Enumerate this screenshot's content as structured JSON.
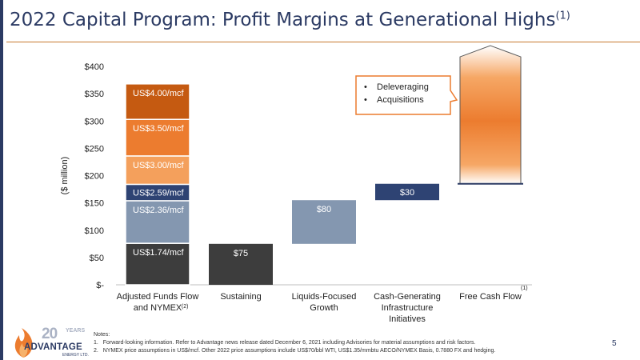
{
  "title": {
    "main": "2022 Capital Program:  Profit Margins at Generational Highs",
    "footnote_ref": "(1)"
  },
  "chart_data": {
    "type": "bar",
    "subtype": "waterfall",
    "ylabel": "($ million)",
    "ylim": [
      0,
      400
    ],
    "yticks": [
      {
        "value": 0,
        "label": "$-"
      },
      {
        "value": 50,
        "label": "$50"
      },
      {
        "value": 100,
        "label": "$100"
      },
      {
        "value": 150,
        "label": "$150"
      },
      {
        "value": 200,
        "label": "$200"
      },
      {
        "value": 250,
        "label": "$250"
      },
      {
        "value": 300,
        "label": "$300"
      },
      {
        "value": 350,
        "label": "$350"
      },
      {
        "value": 400,
        "label": "$400"
      }
    ],
    "categories": [
      {
        "lines": [
          "Adjusted Funds Flow",
          "and NYMEX"
        ],
        "sup": "(2)"
      },
      {
        "lines": [
          "Sustaining"
        ],
        "sup": ""
      },
      {
        "lines": [
          "Liquids-Focused",
          "Growth"
        ],
        "sup": ""
      },
      {
        "lines": [
          "Cash-Generating",
          "Infrastructure",
          "Initiatives"
        ],
        "sup": ""
      },
      {
        "lines": [
          "Free Cash Flow"
        ],
        "sup": "(1)"
      }
    ],
    "stack": [
      {
        "label": "US$1.74/mcf",
        "bottom": 0,
        "top": 76,
        "color": "#3d3d3d"
      },
      {
        "label": "US$2.36/mcf",
        "bottom": 76,
        "top": 154,
        "color": "#8497b0"
      },
      {
        "label": "US$2.59/mcf",
        "bottom": 154,
        "top": 184,
        "color": "#2e4373"
      },
      {
        "label": "US$3.00/mcf",
        "bottom": 184,
        "top": 236,
        "color": "#f4a05c"
      },
      {
        "label": "US$3.50/mcf",
        "bottom": 236,
        "top": 303,
        "color": "#ec7c2f"
      },
      {
        "label": "US$4.00/mcf",
        "bottom": 303,
        "top": 368,
        "color": "#c55a11"
      }
    ],
    "steps": [
      {
        "category": 1,
        "label": "$75",
        "bottom": 0,
        "top": 75,
        "color": "#3d3d3d"
      },
      {
        "category": 2,
        "label": "$80",
        "bottom": 75,
        "top": 155,
        "color": "#8497b0"
      },
      {
        "category": 3,
        "label": "$30",
        "bottom": 155,
        "top": 185,
        "color": "#2e4373"
      }
    ],
    "free_cash_flow": {
      "category": 4,
      "bottom": 185,
      "top": 438,
      "shade_from": 220,
      "shade_to": 380
    },
    "callout": {
      "items": [
        "Deleveraging",
        "Acquisitions"
      ]
    }
  },
  "notes": {
    "heading": "Notes:",
    "items": [
      {
        "num": "1.",
        "text": "Forward-looking information. Refer to Advantage news release dated December 6, 2021 including Advisories for material assumptions and risk factors."
      },
      {
        "num": "2.",
        "text": "NYMEX price assumptions in US$/mcf.  Other 2022 price assumptions include US$70/bbl WTI, US$1.35/mmbtu AECO/NYMEX Basis, 0.7880 FX and hedging."
      }
    ]
  },
  "page_number": "5",
  "logo": {
    "years": "20",
    "years_label": "YEARS",
    "brand": "ADVANTAGE",
    "sub": "ENERGY LTD."
  },
  "colors": {
    "navy": "#2b3a63",
    "orange": "#ec7c2f",
    "accent_rule": "#c8792e"
  }
}
